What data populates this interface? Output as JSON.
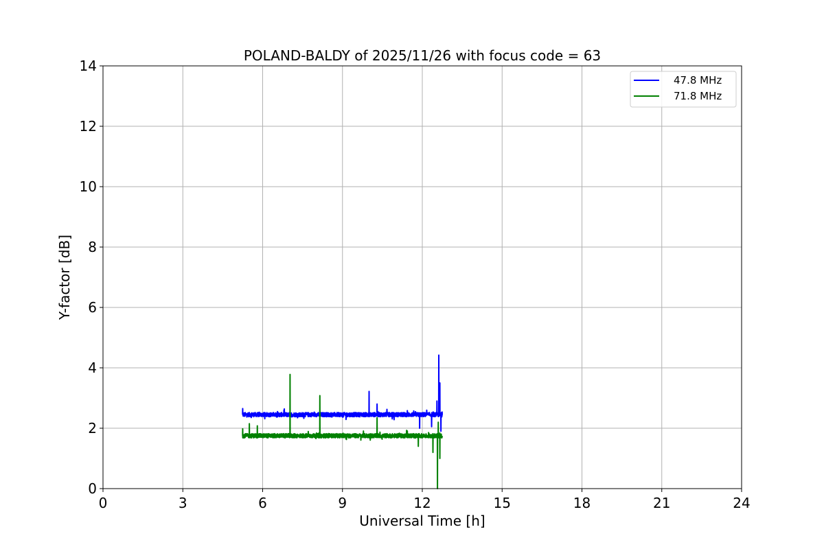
{
  "chart_data": {
    "type": "line",
    "title": "POLAND-BALDY of 2025/11/26 with focus code = 63",
    "xlabel": "Universal Time [h]",
    "ylabel": "Y-factor [dB]",
    "xlim": [
      0,
      24
    ],
    "ylim": [
      0,
      14
    ],
    "xticks": [
      0,
      3,
      6,
      9,
      12,
      15,
      18,
      21,
      24
    ],
    "yticks": [
      0,
      2,
      4,
      6,
      8,
      10,
      12,
      14
    ],
    "grid": true,
    "legend_position": "top-right",
    "series": [
      {
        "name": "47.8 MHz",
        "color": "#0000ff",
        "x_range": [
          5.25,
          12.75
        ],
        "base": 2.45,
        "noise": 0.07,
        "spikes": [
          {
            "x": 5.25,
            "y": 2.65
          },
          {
            "x": 6.8,
            "y": 2.6
          },
          {
            "x": 10.0,
            "y": 3.22
          },
          {
            "x": 10.3,
            "y": 2.8
          },
          {
            "x": 11.9,
            "y": 2.0
          },
          {
            "x": 12.35,
            "y": 2.05
          },
          {
            "x": 12.55,
            "y": 2.9
          },
          {
            "x": 12.62,
            "y": 4.42
          },
          {
            "x": 12.66,
            "y": 3.5
          },
          {
            "x": 12.7,
            "y": 1.9
          }
        ]
      },
      {
        "name": "71.8 MHz",
        "color": "#008000",
        "x_range": [
          5.25,
          12.75
        ],
        "base": 1.75,
        "noise": 0.07,
        "spikes": [
          {
            "x": 5.25,
            "y": 1.98
          },
          {
            "x": 5.5,
            "y": 2.15
          },
          {
            "x": 5.8,
            "y": 2.08
          },
          {
            "x": 7.03,
            "y": 3.78
          },
          {
            "x": 8.15,
            "y": 3.08
          },
          {
            "x": 10.3,
            "y": 2.35
          },
          {
            "x": 11.85,
            "y": 1.4
          },
          {
            "x": 12.4,
            "y": 1.2
          },
          {
            "x": 12.57,
            "y": 0.0
          },
          {
            "x": 12.6,
            "y": 2.2
          },
          {
            "x": 12.66,
            "y": 1.0
          }
        ]
      }
    ]
  }
}
